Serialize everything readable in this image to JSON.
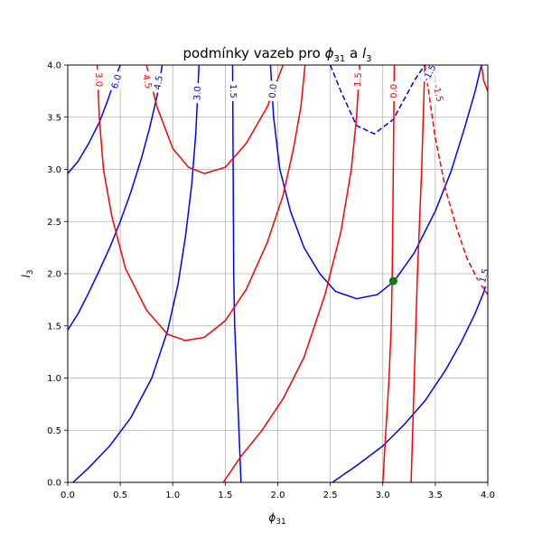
{
  "chart_data": {
    "type": "line",
    "title": {
      "prefix": "podmínky vazeb pro ",
      "phi": "ϕ",
      "phi_sub": "31",
      "mid": " a ",
      "l": "l",
      "l_sub": "3"
    },
    "xlabel": {
      "main": "ϕ",
      "sub": "31"
    },
    "ylabel": {
      "main": "l",
      "sub": "3"
    },
    "xlim": [
      0,
      4
    ],
    "ylim": [
      0,
      4
    ],
    "xticks": [
      "0.0",
      "0.5",
      "1.0",
      "1.5",
      "2.0",
      "2.5",
      "3.0",
      "3.5",
      "4.0"
    ],
    "yticks": [
      "0.0",
      "0.5",
      "1.0",
      "1.5",
      "2.0",
      "2.5",
      "3.0",
      "3.5",
      "4.0"
    ],
    "grid": true,
    "colors": {
      "blue": "#0000ff",
      "red": "#ff0000",
      "marker": "#008000",
      "grid": "#b0b0b0"
    },
    "series": [
      {
        "color": "blue",
        "style": "solid",
        "points": [
          [
            0,
            2.96
          ],
          [
            0.1,
            3.08
          ],
          [
            0.2,
            3.25
          ],
          [
            0.3,
            3.45
          ],
          [
            0.38,
            3.66
          ],
          [
            0.45,
            3.87
          ],
          [
            0.5,
            4.0
          ]
        ]
      },
      {
        "color": "blue",
        "style": "solid",
        "points": [
          [
            0,
            1.46
          ],
          [
            0.1,
            1.62
          ],
          [
            0.2,
            1.82
          ],
          [
            0.3,
            2.03
          ],
          [
            0.4,
            2.25
          ],
          [
            0.5,
            2.5
          ],
          [
            0.6,
            2.78
          ],
          [
            0.7,
            3.1
          ],
          [
            0.78,
            3.4
          ],
          [
            0.85,
            3.7
          ],
          [
            0.9,
            4.0
          ]
        ]
      },
      {
        "color": "blue",
        "style": "solid",
        "points": [
          [
            0.05,
            0
          ],
          [
            0.2,
            0.14
          ],
          [
            0.4,
            0.35
          ],
          [
            0.6,
            0.62
          ],
          [
            0.8,
            1.0
          ],
          [
            0.95,
            1.45
          ],
          [
            1.05,
            1.9
          ],
          [
            1.12,
            2.35
          ],
          [
            1.18,
            2.85
          ],
          [
            1.22,
            3.35
          ],
          [
            1.25,
            4.0
          ]
        ]
      },
      {
        "color": "blue",
        "style": "solid",
        "points": [
          [
            1.57,
            4.0
          ],
          [
            1.575,
            3.0
          ],
          [
            1.58,
            2.0
          ],
          [
            1.59,
            1.5
          ],
          [
            1.61,
            1.0
          ],
          [
            1.63,
            0.5
          ],
          [
            1.65,
            0
          ]
        ]
      },
      {
        "color": "blue",
        "style": "solid",
        "points": [
          [
            1.93,
            4.0
          ],
          [
            1.96,
            3.5
          ],
          [
            2.02,
            3.0
          ],
          [
            2.12,
            2.6
          ],
          [
            2.25,
            2.25
          ],
          [
            2.4,
            2.0
          ],
          [
            2.55,
            1.83
          ],
          [
            2.75,
            1.76
          ],
          [
            2.95,
            1.8
          ],
          [
            3.11,
            1.93
          ],
          [
            3.3,
            2.2
          ],
          [
            3.5,
            2.6
          ],
          [
            3.65,
            2.98
          ],
          [
            3.78,
            3.4
          ],
          [
            3.88,
            3.75
          ],
          [
            3.94,
            4.0
          ]
        ]
      },
      {
        "color": "blue",
        "style": "dashed",
        "points": [
          [
            2.5,
            4.0
          ],
          [
            2.6,
            3.75
          ],
          [
            2.75,
            3.42
          ],
          [
            2.92,
            3.34
          ],
          [
            3.1,
            3.48
          ],
          [
            3.3,
            3.85
          ],
          [
            3.4,
            4.0
          ]
        ]
      },
      {
        "color": "blue",
        "style": "solid",
        "points": [
          [
            2.52,
            0
          ],
          [
            2.75,
            0.16
          ],
          [
            3.0,
            0.35
          ],
          [
            3.2,
            0.55
          ],
          [
            3.4,
            0.78
          ],
          [
            3.6,
            1.08
          ],
          [
            3.75,
            1.35
          ],
          [
            3.88,
            1.62
          ],
          [
            3.96,
            1.82
          ],
          [
            4.0,
            1.95
          ]
        ]
      },
      {
        "color": "red",
        "style": "solid",
        "points": [
          [
            0.28,
            4.0
          ],
          [
            0.3,
            3.5
          ],
          [
            0.34,
            3.0
          ],
          [
            0.42,
            2.55
          ],
          [
            0.55,
            2.05
          ],
          [
            0.75,
            1.65
          ],
          [
            0.95,
            1.42
          ],
          [
            1.12,
            1.36
          ],
          [
            1.3,
            1.39
          ],
          [
            1.5,
            1.55
          ],
          [
            1.7,
            1.85
          ],
          [
            1.9,
            2.3
          ],
          [
            2.05,
            2.75
          ],
          [
            2.15,
            3.2
          ],
          [
            2.22,
            3.6
          ],
          [
            2.26,
            4.0
          ]
        ]
      },
      {
        "color": "red",
        "style": "solid",
        "points": [
          [
            0.75,
            4.0
          ],
          [
            0.85,
            3.6
          ],
          [
            1.0,
            3.2
          ],
          [
            1.15,
            3.02
          ],
          [
            1.3,
            2.96
          ],
          [
            1.5,
            3.02
          ],
          [
            1.7,
            3.25
          ],
          [
            1.9,
            3.6
          ],
          [
            2.05,
            4.0
          ]
        ]
      },
      {
        "color": "red",
        "style": "solid",
        "points": [
          [
            1.48,
            0
          ],
          [
            1.65,
            0.25
          ],
          [
            1.85,
            0.5
          ],
          [
            2.05,
            0.8
          ],
          [
            2.25,
            1.2
          ],
          [
            2.45,
            1.8
          ],
          [
            2.6,
            2.4
          ],
          [
            2.7,
            3.0
          ],
          [
            2.75,
            3.5
          ],
          [
            2.78,
            4.0
          ]
        ]
      },
      {
        "color": "red",
        "style": "solid",
        "points": [
          [
            3.0,
            0
          ],
          [
            3.03,
            0.5
          ],
          [
            3.06,
            1.0
          ],
          [
            3.08,
            1.5
          ],
          [
            3.09,
            2.0
          ],
          [
            3.1,
            3.0
          ],
          [
            3.11,
            4.0
          ]
        ]
      },
      {
        "color": "red",
        "style": "solid",
        "points": [
          [
            3.4,
            4.0
          ],
          [
            3.37,
            3.0
          ],
          [
            3.33,
            2.0
          ],
          [
            3.3,
            1.0
          ],
          [
            3.27,
            0
          ]
        ]
      },
      {
        "color": "red",
        "style": "dashed",
        "points": [
          [
            3.4,
            4.0
          ],
          [
            3.5,
            3.3
          ],
          [
            3.6,
            2.8
          ],
          [
            3.7,
            2.45
          ],
          [
            3.8,
            2.15
          ],
          [
            3.9,
            1.95
          ],
          [
            4.0,
            1.8
          ]
        ]
      },
      {
        "color": "red",
        "style": "solid",
        "points": [
          [
            3.94,
            4.0
          ],
          [
            3.96,
            3.85
          ],
          [
            4.0,
            3.75
          ]
        ]
      }
    ],
    "contour_labels": [
      {
        "text": "3.0",
        "color": "red",
        "x": 0.29,
        "y": 3.86,
        "angle": 88
      },
      {
        "text": "6.0",
        "color": "blue",
        "x": 0.47,
        "y": 3.84,
        "angle": -72
      },
      {
        "text": "4.5",
        "color": "red",
        "x": 0.75,
        "y": 3.84,
        "angle": 78
      },
      {
        "text": "4.5",
        "color": "blue",
        "x": 0.87,
        "y": 3.83,
        "angle": -80
      },
      {
        "text": "3.0",
        "color": "blue",
        "x": 1.24,
        "y": 3.73,
        "angle": -87
      },
      {
        "text": "1.5",
        "color": "blue",
        "x": 1.57,
        "y": 3.75,
        "angle": 90
      },
      {
        "text": "0.0",
        "color": "blue",
        "x": 1.96,
        "y": 3.75,
        "angle": -84
      },
      {
        "text": "1.5",
        "color": "red",
        "x": 2.77,
        "y": 3.86,
        "angle": -86
      },
      {
        "text": "0.0",
        "color": "red",
        "x": 3.11,
        "y": 3.75,
        "angle": -90
      },
      {
        "text": "-1.5",
        "color": "blue",
        "x": 3.45,
        "y": 3.92,
        "angle": -62
      },
      {
        "text": "-1.5",
        "color": "red",
        "x": 3.52,
        "y": 3.73,
        "angle": 76
      },
      {
        "text": "1.5",
        "color": "blue",
        "x": 3.97,
        "y": 1.98,
        "angle": -74
      }
    ],
    "marker": {
      "x": 3.1,
      "y": 1.93
    }
  }
}
